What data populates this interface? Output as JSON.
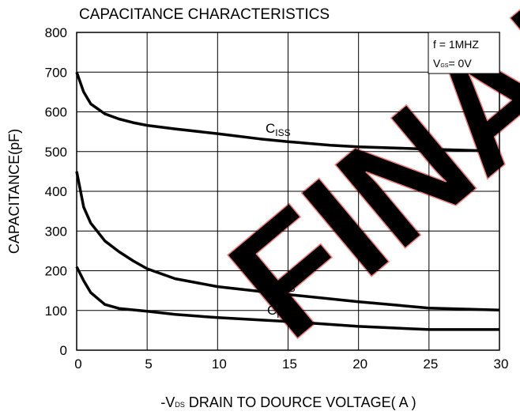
{
  "chart_data": {
    "type": "line",
    "title": "CAPACITANCE CHARACTERISTICS",
    "y_label": "CAPACITANCE(pF)",
    "x_label": {
      "main": "-V",
      "sub": "DS",
      "rest": " DRAIN TO DOURCE VOLTAGE( A )"
    },
    "conditions": {
      "line1": "f = 1MHZ",
      "line2": {
        "main": "V",
        "sub": "GS",
        "rest": "= 0V"
      }
    },
    "watermark": "FINAL",
    "xlim": [
      0,
      30
    ],
    "xticks": [
      0,
      5,
      10,
      15,
      20,
      25,
      30
    ],
    "ylim": [
      0,
      800
    ],
    "yticks": [
      0,
      100,
      200,
      300,
      400,
      500,
      600,
      700,
      800
    ],
    "grid": true,
    "series": [
      {
        "label": {
          "main": "C",
          "sub": "ISS"
        },
        "color": "#000000",
        "x": [
          0,
          0.5,
          1,
          2,
          3,
          4,
          5,
          7,
          10,
          13,
          15,
          18,
          20,
          25,
          30
        ],
        "values": [
          700,
          650,
          620,
          595,
          582,
          573,
          566,
          557,
          545,
          532,
          525,
          516,
          512,
          506,
          501
        ]
      },
      {
        "label": {
          "main": "C",
          "sub": "OSS"
        },
        "color": "#000000",
        "x": [
          0,
          0.5,
          1,
          2,
          3,
          4,
          5,
          7,
          10,
          15,
          20,
          25,
          30
        ],
        "values": [
          450,
          360,
          320,
          275,
          248,
          225,
          205,
          180,
          160,
          140,
          122,
          106,
          101
        ]
      },
      {
        "label": {
          "main": "C",
          "sub": "RSS"
        },
        "color": "#000000",
        "x": [
          0,
          0.5,
          1,
          2,
          3,
          5,
          7,
          10,
          15,
          20,
          25,
          30
        ],
        "values": [
          210,
          175,
          145,
          115,
          105,
          98,
          90,
          82,
          72,
          60,
          52,
          52
        ]
      }
    ]
  }
}
